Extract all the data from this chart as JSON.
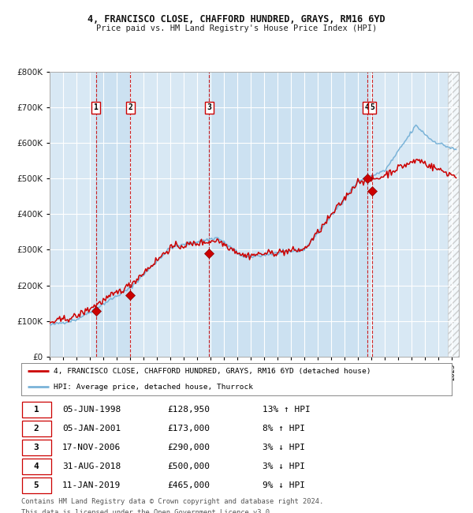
{
  "title1": "4, FRANCISCO CLOSE, CHAFFORD HUNDRED, GRAYS, RM16 6YD",
  "title2": "Price paid vs. HM Land Registry's House Price Index (HPI)",
  "y_ticks": [
    0,
    100000,
    200000,
    300000,
    400000,
    500000,
    600000,
    700000,
    800000
  ],
  "ylim": [
    0,
    800000
  ],
  "xlim_start": 1995.0,
  "xlim_end": 2025.5,
  "bg_color": "#d8e8f4",
  "grid_color": "#ffffff",
  "hpi_line_color": "#7ab3d8",
  "price_line_color": "#cc0000",
  "sale_marker_color": "#cc0000",
  "vline_color": "#cc0000",
  "transactions": [
    {
      "num": 1,
      "date_str": "05-JUN-1998",
      "year": 1998.44,
      "price": 128950
    },
    {
      "num": 2,
      "date_str": "05-JAN-2001",
      "year": 2001.01,
      "price": 173000
    },
    {
      "num": 3,
      "date_str": "17-NOV-2006",
      "year": 2006.88,
      "price": 290000
    },
    {
      "num": 4,
      "date_str": "31-AUG-2018",
      "year": 2018.67,
      "price": 500000
    },
    {
      "num": 5,
      "date_str": "11-JAN-2019",
      "year": 2019.03,
      "price": 465000
    }
  ],
  "legend_line1": "4, FRANCISCO CLOSE, CHAFFORD HUNDRED, GRAYS, RM16 6YD (detached house)",
  "legend_line2": "HPI: Average price, detached house, Thurrock",
  "footnote1": "Contains HM Land Registry data © Crown copyright and database right 2024.",
  "footnote2": "This data is licensed under the Open Government Licence v3.0.",
  "table_rows": [
    [
      "1",
      "05-JUN-1998",
      "£128,950",
      "13% ↑ HPI"
    ],
    [
      "2",
      "05-JAN-2001",
      "£173,000",
      "8% ↑ HPI"
    ],
    [
      "3",
      "17-NOV-2006",
      "£290,000",
      "3% ↓ HPI"
    ],
    [
      "4",
      "31-AUG-2018",
      "£500,000",
      "3% ↓ HPI"
    ],
    [
      "5",
      "11-JAN-2019",
      "£465,000",
      "9% ↓ HPI"
    ]
  ]
}
